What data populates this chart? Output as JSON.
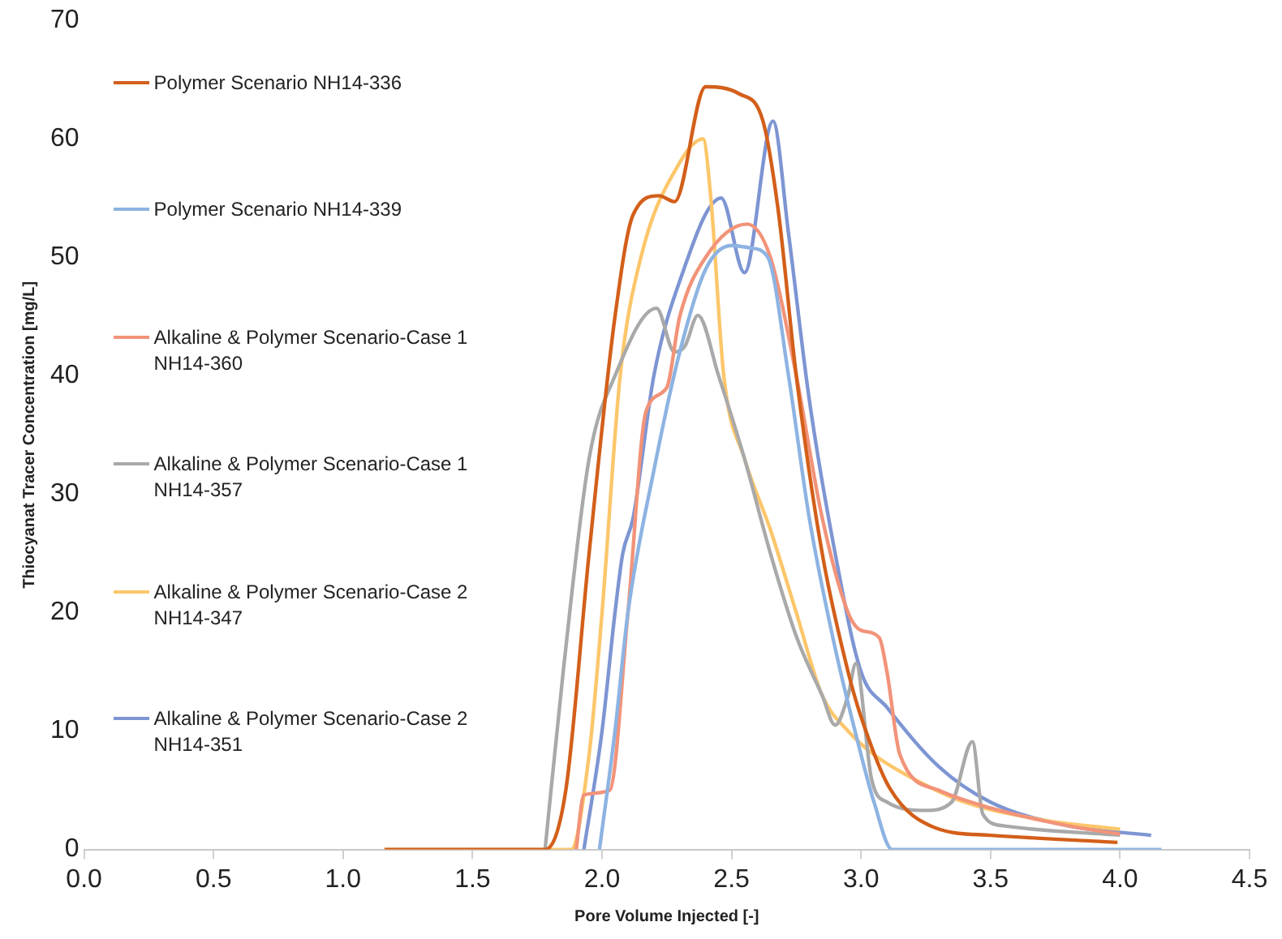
{
  "chart_data": {
    "type": "line",
    "xlabel": "Pore Volume Injected [-]",
    "ylabel": "Thiocyanat Tracer Concentration [mg/L]",
    "xlim": [
      0,
      4.5
    ],
    "xticks": [
      {
        "value": 0,
        "label": "0.0"
      },
      {
        "value": 0.5,
        "label": "0.5"
      },
      {
        "value": 1,
        "label": "1.0"
      },
      {
        "value": 1.5,
        "label": "1.5"
      },
      {
        "value": 2,
        "label": "2.0"
      },
      {
        "value": 2.5,
        "label": "2.5"
      },
      {
        "value": 3,
        "label": "3.0"
      },
      {
        "value": 3.5,
        "label": "3.5"
      },
      {
        "value": 4,
        "label": "4.0"
      },
      {
        "value": 4.5,
        "label": "4.5"
      }
    ],
    "ylim": [
      0,
      70
    ],
    "yticks": [
      0,
      10,
      20,
      30,
      40,
      50,
      60,
      70
    ],
    "grid": false,
    "legend": "top left",
    "marker": "none",
    "line_style": "solid",
    "series": [
      {
        "name": "Polymer Scenario NH14-336",
        "color": "#d35f1a",
        "x": [
          1.16,
          1.78,
          1.86,
          1.95,
          2.05,
          2.12,
          2.22,
          2.28,
          2.4,
          2.53,
          2.62,
          2.68,
          2.75,
          2.85,
          2.95,
          3.0,
          3.11,
          3.29,
          3.5,
          3.99
        ],
        "values": [
          0,
          0,
          5,
          25,
          45,
          53.6,
          55.2,
          54.7,
          64.4,
          63.8,
          61.6,
          54,
          40,
          25,
          15,
          11.2,
          5.2,
          1.8,
          1.2,
          0.6
        ]
      },
      {
        "name": "Polymer Scenario NH14-339",
        "color": "#8db3e2",
        "x": [
          1.99,
          2.05,
          2.1,
          2.2,
          2.3,
          2.4,
          2.5,
          2.57,
          2.64,
          2.72,
          2.8,
          2.9,
          3.0,
          3.05,
          3.12,
          4.16
        ],
        "values": [
          0,
          10,
          20,
          32,
          42,
          49,
          51,
          50.8,
          50,
          40,
          28,
          17,
          8,
          4,
          0,
          0
        ]
      },
      {
        "name": "Alkaline & Polymer Scenario-Case 1 NH14-360",
        "color": "#f29379",
        "x": [
          1.9,
          1.93,
          2.03,
          2.1,
          2.17,
          2.25,
          2.3,
          2.4,
          2.56,
          2.65,
          2.75,
          2.85,
          2.95,
          3.0,
          3.07,
          3.1,
          3.15,
          3.3,
          3.5,
          3.8,
          4.0
        ],
        "values": [
          0,
          4.6,
          5,
          20,
          37,
          39,
          45,
          50,
          52.8,
          50,
          40,
          28,
          20,
          18.5,
          17.9,
          15,
          8,
          5,
          3.5,
          2,
          1.3
        ]
      },
      {
        "name": "Alkaline & Polymer Scenario-Case 1 NH14-357",
        "color": "#a9a9a9",
        "x": [
          1.78,
          1.85,
          1.95,
          2.05,
          2.21,
          2.28,
          2.32,
          2.37,
          2.45,
          2.55,
          2.65,
          2.75,
          2.85,
          2.9,
          2.95,
          2.98,
          3.04,
          3.1,
          3.25,
          3.35,
          3.43,
          3.47,
          3.55,
          4.0
        ],
        "values": [
          0,
          15,
          33,
          40,
          45.7,
          42,
          42.5,
          45.1,
          40,
          33,
          25,
          18,
          13,
          10.5,
          13,
          15.7,
          6,
          4,
          3.3,
          4,
          9.1,
          3,
          2,
          1.2
        ]
      },
      {
        "name": "Alkaline & Polymer Scenario-Case 2 NH14-347",
        "color": "#fcc66a",
        "x": [
          1.16,
          1.88,
          1.95,
          2.0,
          2.07,
          2.15,
          2.3,
          2.39,
          2.42,
          2.47,
          2.55,
          2.65,
          2.75,
          2.85,
          2.95,
          3.05,
          3.2,
          3.4,
          3.7,
          4.0
        ],
        "values": [
          0,
          0,
          8,
          20,
          40,
          50,
          58,
          60,
          55,
          40,
          33,
          27,
          20,
          13,
          10,
          8,
          6,
          4,
          2.5,
          1.7
        ]
      },
      {
        "name": "Alkaline & Polymer Scenario-Case 2 NH14-351",
        "color": "#7e95d3",
        "x": [
          1.93,
          2.0,
          2.05,
          2.08,
          2.12,
          2.2,
          2.3,
          2.46,
          2.55,
          2.66,
          2.72,
          2.8,
          2.9,
          3.0,
          3.1,
          3.3,
          3.5,
          3.8,
          4.12
        ],
        "values": [
          0,
          10,
          20,
          25,
          28,
          40,
          48,
          55,
          48.7,
          61.5,
          52,
          38,
          25,
          15,
          12,
          7,
          4,
          2,
          1.2
        ]
      }
    ]
  }
}
